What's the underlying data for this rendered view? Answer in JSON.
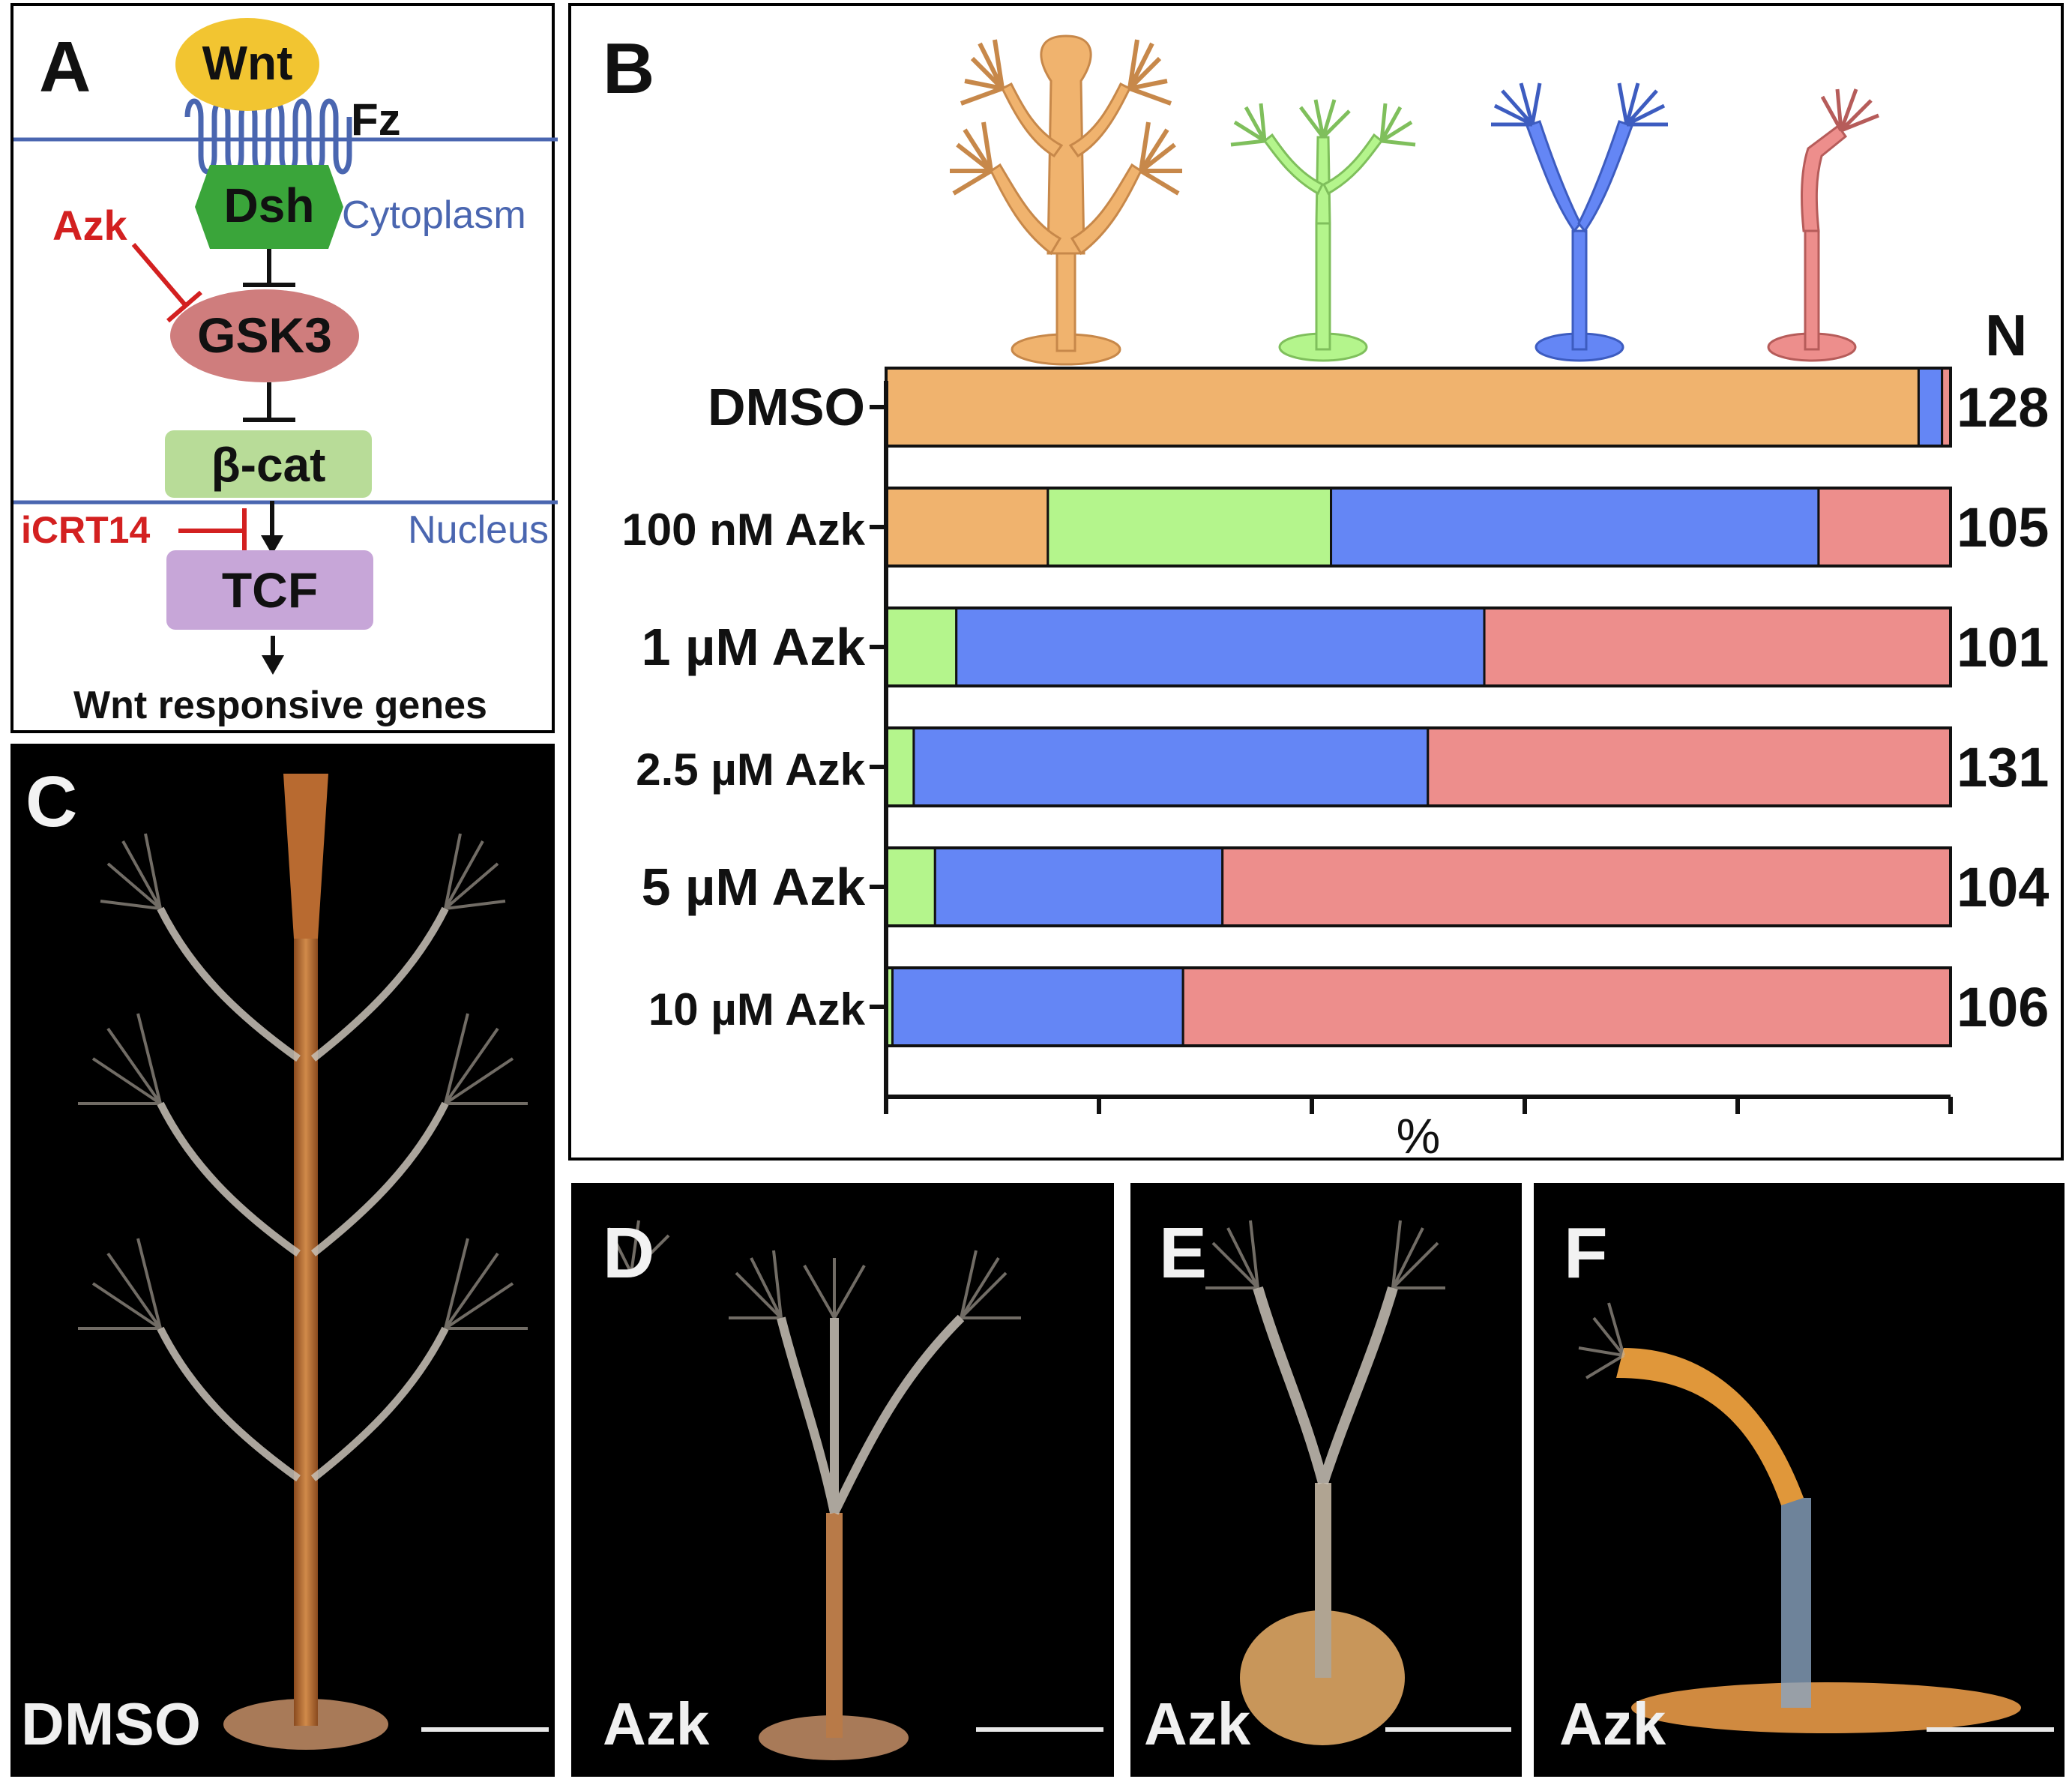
{
  "panelA": {
    "label": "A",
    "nodes": {
      "wnt": "Wnt",
      "fz": "Fz",
      "dsh": "Dsh",
      "cytoplasm": "Cytoplasm",
      "azk": "Azk",
      "gsk3": "GSK3",
      "bcat": "β-cat",
      "icrt14": "iCRT14",
      "nucleus": "Nucleus",
      "tcf": "TCF",
      "output": "Wnt responsive genes"
    },
    "colors": {
      "wnt": "#f2c531",
      "dsh": "#3aa53a",
      "gsk3": "#cf7d7d",
      "bcat": "#b8dc98",
      "tcf": "#c7a6d8",
      "membrane": "#4a66b0",
      "inhibitor": "#d32020"
    }
  },
  "panelB": {
    "label": "B",
    "n_header": "N",
    "xlabel": "%"
  },
  "chart_data": {
    "type": "bar",
    "orientation": "horizontal",
    "stacked": true,
    "xlabel": "%",
    "xlim": [
      0,
      100
    ],
    "categories": [
      "DMSO",
      "100 nM Azk",
      "1 µM Azk",
      "2.5 µM Azk",
      "5 µM Azk",
      "10 µM Azk"
    ],
    "n_values": [
      "128",
      "105",
      "101",
      "131",
      "104",
      "106"
    ],
    "series": [
      {
        "color": "#f0b36e",
        "values": [
          97.0,
          15.2,
          0.0,
          0.0,
          0.0,
          0.0
        ]
      },
      {
        "color": "#b4f58c",
        "values": [
          0.0,
          26.6,
          6.6,
          2.6,
          4.6,
          0.6
        ]
      },
      {
        "color": "#6486f5",
        "values": [
          2.2,
          45.8,
          49.6,
          48.3,
          27.0,
          27.3
        ]
      },
      {
        "color": "#ed8e8c",
        "values": [
          0.8,
          12.4,
          43.8,
          49.1,
          68.4,
          72.1
        ]
      }
    ],
    "legend": "polyp illustrations above bars, ordered left to right as series order"
  },
  "panelC": {
    "label": "C",
    "condition": "DMSO"
  },
  "panelD": {
    "label": "D",
    "condition": "Azk"
  },
  "panelE": {
    "label": "E",
    "condition": "Azk"
  },
  "panelF": {
    "label": "F",
    "condition": "Azk"
  }
}
